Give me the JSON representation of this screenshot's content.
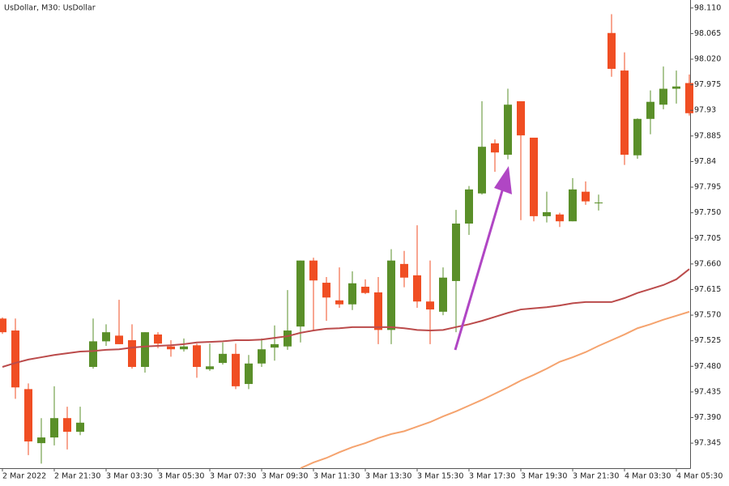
{
  "chart_data": {
    "type": "candlestick",
    "title": "UsDollar, M30:  UsDollar",
    "up_color": "#5a8f29",
    "down_color": "#f04e23",
    "categories": [
      "2 Mar 2022",
      null,
      null,
      null,
      "2 Mar 21:30",
      null,
      null,
      null,
      "3 Mar 03:30",
      null,
      null,
      null,
      "3 Mar 05:30",
      null,
      null,
      null,
      "3 Mar 07:30",
      null,
      null,
      null,
      "3 Mar 09:30",
      null,
      null,
      null,
      "3 Mar 11:30",
      null,
      null,
      null,
      "3 Mar 13:30",
      null,
      null,
      null,
      "3 Mar 15:30",
      null,
      null,
      null,
      "3 Mar 17:30",
      null,
      null,
      null,
      "3 Mar 19:30",
      null,
      null,
      null,
      "3 Mar 21:30",
      null,
      null,
      null,
      "4 Mar 03:30",
      null,
      null,
      null,
      "4 Mar 05:30",
      null
    ],
    "open": [
      97.564,
      97.543,
      97.44,
      97.345,
      97.355,
      97.389,
      97.365,
      97.479,
      97.524,
      97.534,
      97.526,
      97.479,
      97.536,
      97.515,
      97.51,
      97.517,
      97.475,
      97.486,
      97.502,
      97.449,
      97.485,
      97.513,
      97.515,
      97.55,
      97.666,
      97.627,
      97.596,
      97.589,
      97.62,
      97.61,
      97.544,
      97.66,
      97.64,
      97.594,
      97.576,
      97.63,
      97.731,
      97.784,
      97.872,
      97.852,
      97.946,
      97.882,
      97.744,
      97.747,
      97.735,
      97.787,
      97.768,
      98.066,
      98.0,
      97.851,
      97.915,
      97.94,
      97.968,
      97.978
    ],
    "high": [
      97.566,
      97.564,
      97.45,
      97.389,
      97.445,
      97.409,
      97.409,
      97.564,
      97.554,
      97.597,
      97.554,
      97.54,
      97.54,
      97.526,
      97.529,
      97.52,
      97.52,
      97.522,
      97.52,
      97.5,
      97.529,
      97.552,
      97.614,
      97.666,
      97.671,
      97.637,
      97.654,
      97.647,
      97.633,
      97.637,
      97.686,
      97.683,
      97.728,
      97.666,
      97.654,
      97.755,
      97.797,
      97.946,
      97.879,
      97.968,
      97.946,
      97.882,
      97.787,
      97.75,
      97.811,
      97.805,
      97.782,
      98.099,
      98.032,
      97.916,
      97.965,
      98.007,
      98.0,
      97.993
    ],
    "low": [
      97.537,
      97.423,
      97.324,
      97.309,
      97.341,
      97.334,
      97.359,
      97.476,
      97.516,
      97.519,
      97.476,
      97.469,
      97.512,
      97.497,
      97.506,
      97.46,
      97.472,
      97.483,
      97.44,
      97.44,
      97.479,
      97.49,
      97.509,
      97.522,
      97.543,
      97.56,
      97.583,
      97.579,
      97.607,
      97.519,
      97.519,
      97.619,
      97.583,
      97.519,
      97.57,
      97.54,
      97.711,
      97.782,
      97.822,
      97.844,
      97.737,
      97.735,
      97.733,
      97.725,
      97.735,
      97.764,
      97.754,
      97.989,
      97.834,
      97.845,
      97.888,
      97.932,
      97.942,
      97.921
    ],
    "close": [
      97.54,
      97.443,
      97.348,
      97.355,
      97.389,
      97.365,
      97.381,
      97.524,
      97.54,
      97.519,
      97.479,
      97.54,
      97.52,
      97.51,
      97.515,
      97.479,
      97.48,
      97.502,
      97.445,
      97.485,
      97.51,
      97.519,
      97.543,
      97.666,
      97.631,
      97.601,
      97.589,
      97.626,
      97.609,
      97.544,
      97.666,
      97.636,
      97.594,
      97.58,
      97.636,
      97.731,
      97.791,
      97.866,
      97.856,
      97.94,
      97.886,
      97.744,
      97.751,
      97.735,
      97.791,
      97.77,
      97.768,
      98.003,
      97.852,
      97.915,
      97.945,
      97.968,
      97.972,
      97.925
    ],
    "overlays": [
      {
        "color": "#bb4b4b",
        "values": [
          97.479,
          97.486,
          97.492,
          97.496,
          97.5,
          97.503,
          97.506,
          97.507,
          97.509,
          97.51,
          97.513,
          97.515,
          97.516,
          97.517,
          97.519,
          97.522,
          97.523,
          97.524,
          97.526,
          97.526,
          97.527,
          97.53,
          97.533,
          97.539,
          97.543,
          97.546,
          97.547,
          97.549,
          97.549,
          97.549,
          97.549,
          97.547,
          97.544,
          97.543,
          97.544,
          97.549,
          97.554,
          97.56,
          97.567,
          97.574,
          97.58,
          97.582,
          97.584,
          97.587,
          97.591,
          97.593,
          97.593,
          97.593,
          97.6,
          97.609,
          97.616,
          97.623,
          97.633,
          97.651
        ]
      },
      {
        "color": "#f5a36e",
        "values": [
          null,
          null,
          null,
          null,
          null,
          null,
          null,
          null,
          null,
          null,
          null,
          null,
          null,
          null,
          null,
          null,
          null,
          null,
          null,
          null,
          null,
          null,
          null,
          97.301,
          97.311,
          97.319,
          97.329,
          97.338,
          97.345,
          97.354,
          97.361,
          97.366,
          97.374,
          97.382,
          97.392,
          97.401,
          97.411,
          97.421,
          97.432,
          97.443,
          97.455,
          97.465,
          97.476,
          97.488,
          97.496,
          97.505,
          97.516,
          97.526,
          97.536,
          97.547,
          97.554,
          97.562,
          97.569,
          97.576
        ]
      }
    ],
    "ylim": [
      97.301,
      98.124
    ],
    "yticks": [
      {
        "value": 98.11,
        "label": "98.110"
      },
      98.065,
      {
        "value": 98.02,
        "label": "98.020"
      },
      97.975,
      97.93,
      97.885,
      97.84,
      97.795,
      {
        "value": 97.75,
        "label": "97.750"
      },
      97.705,
      {
        "value": 97.66,
        "label": "97.660"
      },
      97.615,
      {
        "value": 97.57,
        "label": "97.570"
      },
      97.525,
      {
        "value": 97.48,
        "label": "97.480"
      },
      97.435,
      {
        "value": 97.39,
        "label": "97.390"
      },
      97.345
    ]
  }
}
